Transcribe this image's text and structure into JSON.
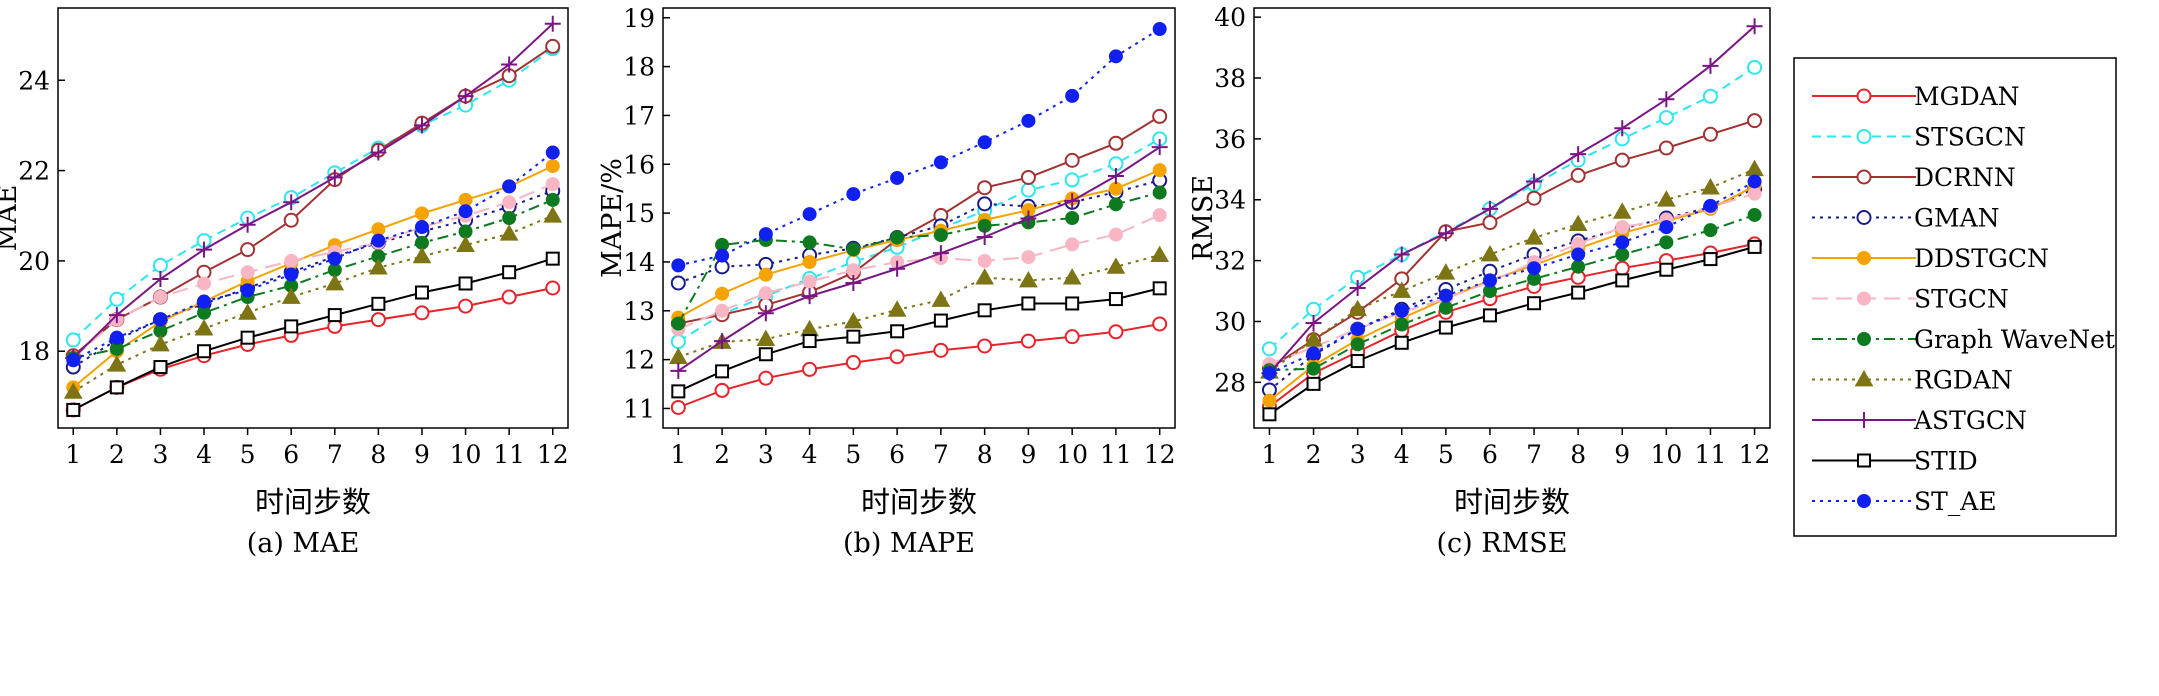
{
  "x_tick_labels": [
    "1",
    "2",
    "3",
    "4",
    "5",
    "6",
    "7",
    "8",
    "9",
    "10",
    "11",
    "12"
  ],
  "panels": [
    {
      "key": "mae",
      "ylabel": "MAE",
      "xlabel": "时间步数",
      "caption": "(a) MAE",
      "yticks": [
        "18",
        "20",
        "22",
        "24"
      ]
    },
    {
      "key": "mape",
      "ylabel": "MAPE/%",
      "xlabel": "时间步数",
      "caption": "(b) MAPE",
      "yticks": [
        "11",
        "12",
        "13",
        "14",
        "15",
        "16",
        "17",
        "18",
        "19"
      ]
    },
    {
      "key": "rmse",
      "ylabel": "RMSE",
      "xlabel": "时间步数",
      "caption": "(c) RMSE",
      "yticks": [
        "28",
        "30",
        "32",
        "34",
        "36",
        "38",
        "40"
      ]
    }
  ],
  "legend": {
    "placement": "right",
    "entries": [
      "MGDAN",
      "STSGCN",
      "DCRNN",
      "GMAN",
      "DDSTGCN",
      "STGCN",
      "Graph WaveNet",
      "RGDAN",
      "ASTGCN",
      "STID",
      "ST_AE"
    ]
  },
  "series_style": [
    {
      "name": "MGDAN",
      "color": "#e8232a",
      "dash": "solid",
      "marker": "circle-open"
    },
    {
      "name": "STSGCN",
      "color": "#2ee6ee",
      "dash": "dash",
      "marker": "circle-open"
    },
    {
      "name": "DCRNN",
      "color": "#a33232",
      "dash": "solid",
      "marker": "circle-open"
    },
    {
      "name": "GMAN",
      "color": "#1a1a8a",
      "dash": "dot",
      "marker": "circle-open"
    },
    {
      "name": "DDSTGCN",
      "color": "#f5a300",
      "dash": "solid",
      "marker": "circle-filled"
    },
    {
      "name": "STGCN",
      "color": "#f8b6c4",
      "dash": "longdash",
      "marker": "circle-filled"
    },
    {
      "name": "Graph WaveNet",
      "color": "#0e7a20",
      "dash": "dashdot",
      "marker": "circle-filled"
    },
    {
      "name": "RGDAN",
      "color": "#7d7414",
      "dash": "dot",
      "marker": "triangle-filled"
    },
    {
      "name": "ASTGCN",
      "color": "#7a1586",
      "dash": "solid",
      "marker": "plus"
    },
    {
      "name": "STID",
      "color": "#000000",
      "dash": "solid",
      "marker": "square-open"
    },
    {
      "name": "ST_AE",
      "color": "#1020f0",
      "dash": "dot",
      "marker": "circle-filled"
    }
  ],
  "chart_data": [
    {
      "type": "line",
      "title": "(a) MAE",
      "xlabel": "时间步数",
      "ylabel": "MAE",
      "x": [
        1,
        2,
        3,
        4,
        5,
        6,
        7,
        8,
        9,
        10,
        11,
        12
      ],
      "ylim": [
        16.3,
        25.6
      ],
      "grid": false,
      "series": [
        {
          "name": "MGDAN",
          "values": [
            16.7,
            17.2,
            17.6,
            17.9,
            18.15,
            18.35,
            18.55,
            18.7,
            18.85,
            19.0,
            19.2,
            19.4
          ]
        },
        {
          "name": "STSGCN",
          "values": [
            18.25,
            19.15,
            19.9,
            20.45,
            20.95,
            21.4,
            21.95,
            22.5,
            23.0,
            23.45,
            24.0,
            24.7
          ]
        },
        {
          "name": "DCRNN",
          "values": [
            17.9,
            18.7,
            19.2,
            19.75,
            20.25,
            20.9,
            21.8,
            22.45,
            23.05,
            23.65,
            24.1,
            24.75
          ]
        },
        {
          "name": "GMAN",
          "values": [
            17.65,
            18.25,
            18.7,
            19.05,
            19.4,
            19.75,
            20.1,
            20.4,
            20.65,
            20.9,
            21.2,
            21.55
          ]
        },
        {
          "name": "DDSTGCN",
          "values": [
            17.2,
            18.0,
            18.65,
            19.1,
            19.55,
            19.95,
            20.35,
            20.7,
            21.05,
            21.35,
            21.65,
            22.1
          ]
        },
        {
          "name": "STGCN",
          "values": [
            17.85,
            18.7,
            19.2,
            19.5,
            19.75,
            20.0,
            20.2,
            20.4,
            20.75,
            21.0,
            21.3,
            21.7
          ]
        },
        {
          "name": "Graph WaveNet",
          "values": [
            17.85,
            18.05,
            18.45,
            18.85,
            19.2,
            19.45,
            19.8,
            20.1,
            20.4,
            20.65,
            20.95,
            21.35
          ]
        },
        {
          "name": "RGDAN",
          "values": [
            17.1,
            17.7,
            18.15,
            18.5,
            18.85,
            19.2,
            19.5,
            19.85,
            20.1,
            20.35,
            20.6,
            21.0
          ]
        },
        {
          "name": "ASTGCN",
          "values": [
            17.85,
            18.8,
            19.6,
            20.25,
            20.8,
            21.3,
            21.85,
            22.4,
            23.0,
            23.65,
            24.35,
            25.25
          ]
        },
        {
          "name": "STID",
          "values": [
            16.7,
            17.2,
            17.65,
            18.0,
            18.3,
            18.55,
            18.8,
            19.05,
            19.3,
            19.5,
            19.75,
            20.05
          ]
        },
        {
          "name": "ST_AE",
          "values": [
            17.8,
            18.3,
            18.7,
            19.1,
            19.35,
            19.7,
            20.05,
            20.45,
            20.75,
            21.1,
            21.65,
            22.4
          ]
        }
      ]
    },
    {
      "type": "line",
      "title": "(b) MAPE",
      "xlabel": "时间步数",
      "ylabel": "MAPE/%",
      "x": [
        1,
        2,
        3,
        4,
        5,
        6,
        7,
        8,
        9,
        10,
        11,
        12
      ],
      "ylim": [
        10.6,
        19.2
      ],
      "grid": false,
      "series": [
        {
          "name": "MGDAN",
          "values": [
            11.02,
            11.37,
            11.62,
            11.8,
            11.94,
            12.06,
            12.19,
            12.28,
            12.38,
            12.47,
            12.57,
            12.73
          ]
        },
        {
          "name": "STSGCN",
          "values": [
            12.37,
            12.93,
            13.3,
            13.66,
            14.0,
            14.3,
            14.68,
            15.05,
            15.47,
            15.68,
            16.01,
            16.52
          ]
        },
        {
          "name": "DCRNN",
          "values": [
            12.74,
            12.92,
            13.12,
            13.38,
            13.78,
            14.46,
            14.95,
            15.52,
            15.73,
            16.08,
            16.43,
            16.98
          ]
        },
        {
          "name": "GMAN",
          "values": [
            13.57,
            13.9,
            13.95,
            14.14,
            14.28,
            14.5,
            14.74,
            15.19,
            15.14,
            15.22,
            15.43,
            15.67
          ]
        },
        {
          "name": "DDSTGCN",
          "values": [
            12.86,
            13.35,
            13.74,
            14.0,
            14.24,
            14.45,
            14.64,
            14.86,
            15.06,
            15.3,
            15.5,
            15.88
          ]
        },
        {
          "name": "STGCN",
          "values": [
            12.62,
            13.0,
            13.36,
            13.6,
            13.83,
            14.0,
            14.08,
            14.02,
            14.1,
            14.36,
            14.56,
            14.96
          ]
        },
        {
          "name": "Graph WaveNet",
          "values": [
            12.74,
            14.35,
            14.45,
            14.4,
            14.26,
            14.5,
            14.55,
            14.74,
            14.81,
            14.9,
            15.18,
            15.42
          ]
        },
        {
          "name": "RGDAN",
          "values": [
            12.05,
            12.36,
            12.42,
            12.62,
            12.78,
            13.02,
            13.22,
            13.68,
            13.62,
            13.68,
            13.9,
            14.14
          ]
        },
        {
          "name": "ASTGCN",
          "values": [
            11.77,
            12.38,
            12.95,
            13.3,
            13.57,
            13.86,
            14.18,
            14.51,
            14.89,
            15.25,
            15.76,
            16.35
          ]
        },
        {
          "name": "STID",
          "values": [
            11.35,
            11.76,
            12.11,
            12.38,
            12.47,
            12.58,
            12.8,
            13.01,
            13.15,
            13.15,
            13.24,
            13.46
          ]
        },
        {
          "name": "ST_AE",
          "values": [
            13.93,
            14.13,
            14.57,
            14.98,
            15.39,
            15.72,
            16.04,
            16.45,
            16.89,
            17.4,
            18.21,
            18.77
          ]
        }
      ]
    },
    {
      "type": "line",
      "title": "(c) RMSE",
      "xlabel": "时间步数",
      "ylabel": "RMSE",
      "x": [
        1,
        2,
        3,
        4,
        5,
        6,
        7,
        8,
        9,
        10,
        11,
        12
      ],
      "ylim": [
        26.5,
        40.3
      ],
      "grid": false,
      "series": [
        {
          "name": "MGDAN",
          "values": [
            27.2,
            28.3,
            29.0,
            29.7,
            30.3,
            30.75,
            31.15,
            31.45,
            31.75,
            32.0,
            32.25,
            32.55
          ]
        },
        {
          "name": "STSGCN",
          "values": [
            29.1,
            30.4,
            31.45,
            32.2,
            32.95,
            33.7,
            34.5,
            35.3,
            36.0,
            36.7,
            37.4,
            38.35
          ]
        },
        {
          "name": "DCRNN",
          "values": [
            28.45,
            29.4,
            30.3,
            31.4,
            32.95,
            33.25,
            34.05,
            34.8,
            35.3,
            35.7,
            36.15,
            36.6
          ]
        },
        {
          "name": "GMAN",
          "values": [
            27.75,
            28.9,
            29.75,
            30.4,
            31.05,
            31.65,
            32.2,
            32.65,
            33.05,
            33.4,
            33.75,
            34.35
          ]
        },
        {
          "name": "DDSTGCN",
          "values": [
            27.4,
            28.55,
            29.4,
            30.1,
            30.75,
            31.35,
            31.85,
            32.4,
            32.9,
            33.3,
            33.7,
            34.45
          ]
        },
        {
          "name": "STGCN",
          "values": [
            28.6,
            29.15,
            29.75,
            30.3,
            30.75,
            31.3,
            31.95,
            32.55,
            33.1,
            33.35,
            33.75,
            34.2
          ]
        },
        {
          "name": "Graph WaveNet",
          "values": [
            28.4,
            28.45,
            29.25,
            29.9,
            30.45,
            31.0,
            31.4,
            31.8,
            32.2,
            32.6,
            33.0,
            33.5
          ]
        },
        {
          "name": "RGDAN",
          "values": [
            28.35,
            29.4,
            30.4,
            31.0,
            31.6,
            32.2,
            32.75,
            33.2,
            33.6,
            34.0,
            34.4,
            35.0
          ]
        },
        {
          "name": "ASTGCN",
          "values": [
            28.3,
            29.95,
            31.1,
            32.2,
            32.9,
            33.7,
            34.6,
            35.5,
            36.35,
            37.3,
            38.4,
            39.7
          ]
        },
        {
          "name": "STID",
          "values": [
            26.95,
            27.95,
            28.7,
            29.3,
            29.8,
            30.2,
            30.6,
            30.95,
            31.35,
            31.7,
            32.05,
            32.45
          ]
        },
        {
          "name": "ST_AE",
          "values": [
            28.3,
            28.95,
            29.75,
            30.35,
            30.85,
            31.35,
            31.75,
            32.2,
            32.6,
            33.1,
            33.8,
            34.6
          ]
        }
      ]
    }
  ]
}
